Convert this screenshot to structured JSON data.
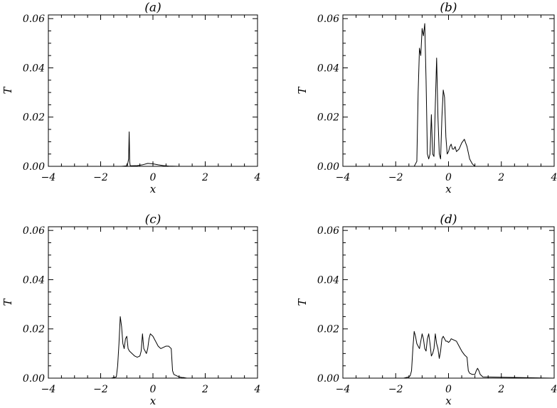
{
  "chart_data": [
    {
      "type": "line",
      "title": "(a)",
      "xlabel": "x",
      "ylabel": "T",
      "xlim": [
        -4,
        4
      ],
      "ylim": [
        0,
        0.0615
      ],
      "xticks": [
        -4,
        -2,
        0,
        2,
        4
      ],
      "xtick_labels": [
        "−4",
        "−2",
        "0",
        "2",
        "4"
      ],
      "yticks": [
        0.0,
        0.02,
        0.04,
        0.06
      ],
      "ytick_labels": [
        "0.00",
        "0.02",
        "0.04",
        "0.06"
      ],
      "grid": false,
      "series": [
        {
          "x": [
            -4,
            -1.2,
            -0.98,
            -0.93,
            -0.91,
            -0.9,
            -0.89,
            -0.87,
            -0.82,
            -0.6,
            -0.4,
            -0.2,
            0,
            0.2,
            0.4,
            0.6,
            1.0,
            4
          ],
          "y": [
            0,
            0,
            0.0002,
            0.003,
            0.014,
            0.009,
            0.002,
            0.0003,
            0.0002,
            0.0003,
            0.0006,
            0.0012,
            0.001,
            0.0006,
            0.0003,
            0.0001,
            0,
            0
          ]
        }
      ]
    },
    {
      "type": "line",
      "title": "(b)",
      "xlabel": "x",
      "ylabel": "T",
      "xlim": [
        -4,
        4
      ],
      "ylim": [
        0,
        0.0615
      ],
      "xticks": [
        -4,
        -2,
        0,
        2,
        4
      ],
      "xtick_labels": [
        "−4",
        "−2",
        "0",
        "2",
        "4"
      ],
      "yticks": [
        0.0,
        0.02,
        0.04,
        0.06
      ],
      "ytick_labels": [
        "0.00",
        "0.02",
        "0.04",
        "0.06"
      ],
      "grid": false,
      "series": [
        {
          "x": [
            -4,
            -1.3,
            -1.2,
            -1.15,
            -1.1,
            -1.05,
            -1.0,
            -0.95,
            -0.9,
            -0.85,
            -0.8,
            -0.75,
            -0.7,
            -0.65,
            -0.6,
            -0.55,
            -0.5,
            -0.45,
            -0.4,
            -0.35,
            -0.3,
            -0.25,
            -0.2,
            -0.15,
            -0.1,
            -0.05,
            0,
            0.05,
            0.1,
            0.15,
            0.2,
            0.25,
            0.3,
            0.4,
            0.5,
            0.6,
            0.7,
            0.8,
            0.9,
            1.0,
            4
          ],
          "y": [
            0,
            0,
            0.002,
            0.03,
            0.048,
            0.045,
            0.056,
            0.053,
            0.058,
            0.035,
            0.005,
            0.003,
            0.005,
            0.021,
            0.005,
            0.004,
            0.025,
            0.044,
            0.02,
            0.005,
            0.003,
            0.02,
            0.031,
            0.028,
            0.012,
            0.005,
            0.006,
            0.008,
            0.009,
            0.007,
            0.007,
            0.008,
            0.006,
            0.007,
            0.0095,
            0.011,
            0.008,
            0.003,
            0.001,
            0,
            0
          ]
        }
      ]
    },
    {
      "type": "line",
      "title": "(c)",
      "xlabel": "x",
      "ylabel": "T",
      "xlim": [
        -4,
        4
      ],
      "ylim": [
        0,
        0.0615
      ],
      "xticks": [
        -4,
        -2,
        0,
        2,
        4
      ],
      "xtick_labels": [
        "−4",
        "−2",
        "0",
        "2",
        "4"
      ],
      "yticks": [
        0.0,
        0.02,
        0.04,
        0.06
      ],
      "ytick_labels": [
        "0.00",
        "0.02",
        "0.04",
        "0.06"
      ],
      "grid": false,
      "series": [
        {
          "x": [
            -4,
            -1.6,
            -1.4,
            -1.35,
            -1.3,
            -1.25,
            -1.2,
            -1.15,
            -1.1,
            -1.05,
            -1.0,
            -0.95,
            -0.9,
            -0.8,
            -0.7,
            -0.6,
            -0.5,
            -0.45,
            -0.4,
            -0.35,
            -0.3,
            -0.25,
            -0.2,
            -0.15,
            -0.1,
            -0.05,
            0,
            0.05,
            0.1,
            0.15,
            0.2,
            0.25,
            0.3,
            0.4,
            0.5,
            0.6,
            0.7,
            0.75,
            0.8,
            0.9,
            1.0,
            1.1,
            1.2,
            1.3,
            4
          ],
          "y": [
            0,
            0,
            0.0005,
            0.005,
            0.014,
            0.025,
            0.021,
            0.014,
            0.012,
            0.016,
            0.017,
            0.012,
            0.011,
            0.01,
            0.009,
            0.0085,
            0.009,
            0.011,
            0.018,
            0.012,
            0.011,
            0.01,
            0.012,
            0.016,
            0.018,
            0.0175,
            0.017,
            0.016,
            0.015,
            0.014,
            0.013,
            0.0125,
            0.012,
            0.0125,
            0.013,
            0.013,
            0.012,
            0.003,
            0.0015,
            0.001,
            0.0005,
            0.0003,
            0.0002,
            0,
            0
          ]
        }
      ]
    },
    {
      "type": "line",
      "title": "(d)",
      "xlabel": "x",
      "ylabel": "T",
      "xlim": [
        -4,
        4
      ],
      "ylim": [
        0,
        0.0615
      ],
      "xticks": [
        -4,
        -2,
        0,
        2,
        4
      ],
      "xtick_labels": [
        "−4",
        "−2",
        "0",
        "2",
        "4"
      ],
      "yticks": [
        0.0,
        0.02,
        0.04,
        0.06
      ],
      "ytick_labels": [
        "0.00",
        "0.02",
        "0.04",
        "0.06"
      ],
      "grid": false,
      "series": [
        {
          "x": [
            -4,
            -1.7,
            -1.5,
            -1.45,
            -1.4,
            -1.35,
            -1.3,
            -1.25,
            -1.2,
            -1.15,
            -1.1,
            -1.05,
            -1.0,
            -0.95,
            -0.9,
            -0.85,
            -0.8,
            -0.75,
            -0.7,
            -0.65,
            -0.6,
            -0.55,
            -0.5,
            -0.45,
            -0.4,
            -0.35,
            -0.3,
            -0.25,
            -0.2,
            -0.15,
            -0.1,
            -0.05,
            0,
            0.05,
            0.1,
            0.2,
            0.3,
            0.4,
            0.5,
            0.6,
            0.65,
            0.7,
            0.75,
            0.8,
            0.9,
            1.0,
            1.05,
            1.1,
            1.15,
            1.2,
            1.3,
            4
          ],
          "y": [
            0,
            0,
            0.0005,
            0.001,
            0.003,
            0.012,
            0.019,
            0.017,
            0.014,
            0.013,
            0.012,
            0.015,
            0.018,
            0.016,
            0.012,
            0.011,
            0.016,
            0.018,
            0.014,
            0.009,
            0.01,
            0.012,
            0.018,
            0.014,
            0.012,
            0.008,
            0.011,
            0.016,
            0.017,
            0.016,
            0.015,
            0.015,
            0.0145,
            0.015,
            0.016,
            0.0155,
            0.015,
            0.013,
            0.011,
            0.0095,
            0.009,
            0.0085,
            0.003,
            0.002,
            0.0015,
            0.0015,
            0.003,
            0.004,
            0.003,
            0.0015,
            0.0005,
            0
          ]
        }
      ]
    }
  ]
}
